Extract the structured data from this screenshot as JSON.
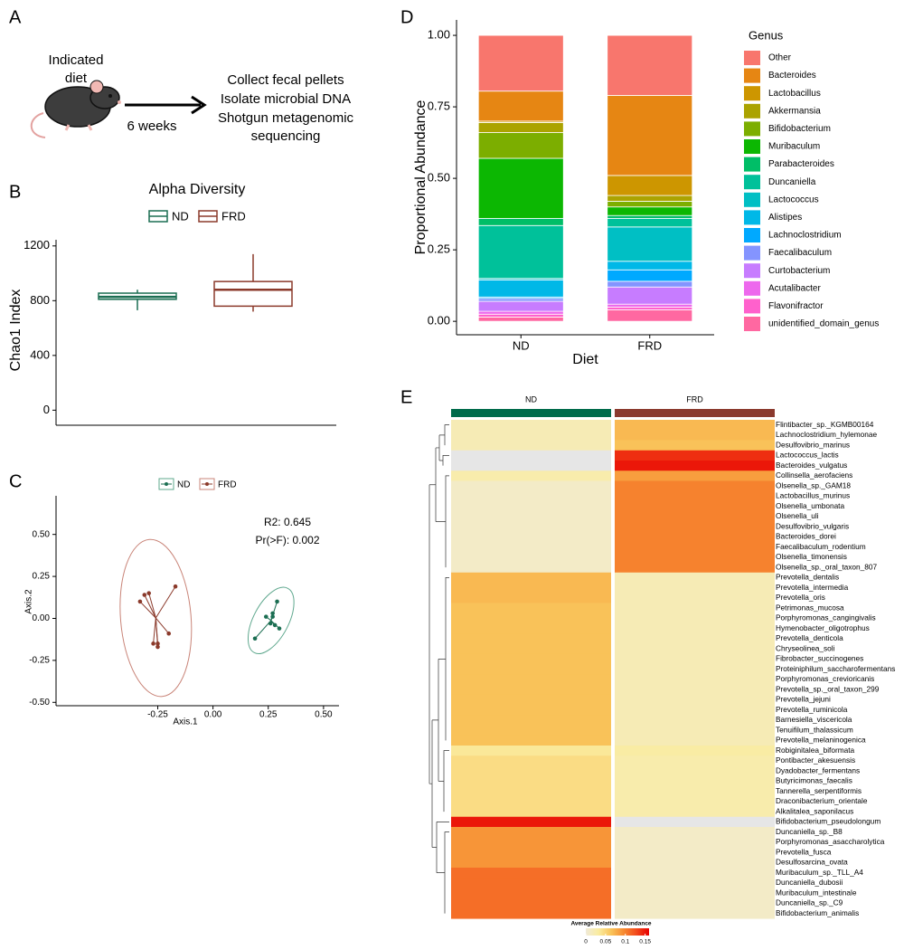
{
  "diagram": {
    "panel_label": "A",
    "diet_lines": [
      "Indicated",
      "diet"
    ],
    "duration": "6 weeks",
    "step_lines": [
      "Collect fecal pellets",
      "Isolate microbial DNA",
      "Shotgun metagenomic",
      "sequencing"
    ]
  },
  "chart_data": [
    {
      "type": "box",
      "panel_label": "B",
      "title": "Alpha Diversity",
      "ylabel": "Chao1 Index",
      "ylim": [
        -110,
        1245
      ],
      "yticks": [
        0,
        400,
        800,
        1200
      ],
      "series": [
        {
          "name": "ND",
          "color": "#1b6e52",
          "min": 730,
          "q1": 810,
          "median": 828,
          "q3": 855,
          "max": 880
        },
        {
          "name": "FRD",
          "color": "#8b3a2b",
          "min": 720,
          "q1": 760,
          "median": 880,
          "q3": 940,
          "max": 1140
        }
      ]
    },
    {
      "type": "scatter",
      "panel_label": "C",
      "xlabel": "Axis.1",
      "ylabel": "Axis.2",
      "annotations": [
        "R2: 0.645",
        "Pr(>F): 0.002"
      ],
      "xlim": [
        -0.71,
        0.57
      ],
      "ylim": [
        -0.52,
        0.73
      ],
      "xticks": [
        -0.25,
        {
          "value": 0,
          "label": "0.00"
        },
        0.25,
        {
          "value": 0.5,
          "label": "0.50"
        }
      ],
      "yticks": [
        {
          "value": -0.5,
          "label": "-0.50"
        },
        -0.25,
        {
          "value": 0,
          "label": "0.00"
        },
        0.25,
        {
          "value": 0.5,
          "label": "0.50"
        }
      ],
      "series": [
        {
          "name": "ND",
          "color": "#1b6e52",
          "ellipse_color": "#5fa88e",
          "x": [
            0.29,
            0.27,
            0.26,
            0.24,
            0.28,
            0.27,
            0.19,
            0.3
          ],
          "y": [
            0.1,
            0.03,
            -0.03,
            0.01,
            -0.04,
            0.01,
            -0.12,
            -0.06
          ]
        },
        {
          "name": "FRD",
          "color": "#8b3a2b",
          "ellipse_color": "#c98478",
          "x": [
            -0.17,
            -0.29,
            -0.33,
            -0.31,
            -0.2,
            -0.25,
            -0.27,
            -0.25
          ],
          "y": [
            0.19,
            0.15,
            0.1,
            0.14,
            -0.09,
            -0.15,
            -0.15,
            -0.17
          ]
        }
      ]
    },
    {
      "type": "bar",
      "stacked": true,
      "panel_label": "D",
      "xlabel": "Diet",
      "ylabel": "Proportional Abundance",
      "legend_title": "Genus",
      "categories": [
        "ND",
        "FRD"
      ],
      "ylim": [
        -0.047,
        1.054
      ],
      "yticks": [
        {
          "value": 0,
          "label": "0.00"
        },
        {
          "value": 0.25,
          "label": "0.25"
        },
        {
          "value": 0.5,
          "label": "0.50"
        },
        {
          "value": 0.75,
          "label": "0.75"
        },
        {
          "value": 1,
          "label": "1.00"
        }
      ],
      "series": [
        {
          "name": "Other",
          "color": "#F8766D",
          "values": [
            0.195,
            0.21
          ]
        },
        {
          "name": "Bacteroides",
          "color": "#E68613",
          "values": [
            0.105,
            0.28
          ]
        },
        {
          "name": "Lactobacillus",
          "color": "#CD9600",
          "values": [
            0.005,
            0.07
          ]
        },
        {
          "name": "Akkermansia",
          "color": "#ABA300",
          "values": [
            0.035,
            0.02
          ]
        },
        {
          "name": "Bifidobacterium",
          "color": "#7CAE00",
          "values": [
            0.09,
            0.02
          ]
        },
        {
          "name": "Muribaculum",
          "color": "#0CB702",
          "values": [
            0.21,
            0.03
          ]
        },
        {
          "name": "Parabacteroides",
          "color": "#00BE67",
          "values": [
            0.025,
            0.01
          ]
        },
        {
          "name": "Duncaniella",
          "color": "#00C19A",
          "values": [
            0.185,
            0.03
          ]
        },
        {
          "name": "Lactococcus",
          "color": "#00BFC4",
          "values": [
            0.005,
            0.12
          ]
        },
        {
          "name": "Alistipes",
          "color": "#00B8E7",
          "values": [
            0.06,
            0.03
          ]
        },
        {
          "name": "Lachnoclostridium",
          "color": "#00A9FF",
          "values": [
            0.005,
            0.04
          ]
        },
        {
          "name": "Faecalibaculum",
          "color": "#8494FF",
          "values": [
            0.01,
            0.02
          ]
        },
        {
          "name": "Curtobacterium",
          "color": "#C77CFF",
          "values": [
            0.035,
            0.06
          ]
        },
        {
          "name": "Acutalibacter",
          "color": "#ED68ED",
          "values": [
            0.01,
            0.01
          ]
        },
        {
          "name": "Flavonifractor",
          "color": "#FF61CC",
          "values": [
            0.01,
            0.01
          ]
        },
        {
          "name": "unidentified_domain_genus",
          "color": "#FF68A1",
          "values": [
            0.015,
            0.04
          ]
        }
      ]
    },
    {
      "type": "heatmap",
      "panel_label": "E",
      "columns": [
        "ND",
        "FRD"
      ],
      "column_colors": [
        "#006b4a",
        "#8b3a2e"
      ],
      "colorbar_title": "Average Relative Abundance",
      "clim": [
        0,
        0.16
      ],
      "colorbar_ticks": [
        0,
        0.05,
        0.1,
        0.15
      ],
      "colors": [
        "#f0ead8",
        "#faeca0",
        "#f9c45a",
        "#f78a30",
        "#f24a1c",
        "#e80000"
      ],
      "na_color": "#e6e6e6",
      "rows": [
        "Flintibacter_sp._KGMB00164",
        "Lachnoclostridium_hylemonae",
        "Desulfovibrio_marinus",
        "Lactococcus_lactis",
        "Bacteroides_vulgatus",
        "Collinsella_aerofaciens",
        "Olsenella_sp._GAM18",
        "Lactobacillus_murinus",
        "Olsenella_umbonata",
        "Olsenella_uli",
        "Desulfovibrio_vulgaris",
        "Bacteroides_dorei",
        "Faecalibaculum_rodentium",
        "Olsenella_timonensis",
        "Olsenella_sp._oral_taxon_807",
        "Prevotella_dentalis",
        "Prevotella_intermedia",
        "Prevotella_oris",
        "Petrimonas_mucosa",
        "Porphyromonas_cangingivalis",
        "Hymenobacter_oligotrophus",
        "Prevotella_denticola",
        "Chryseolinea_soli",
        "Fibrobacter_succinogenes",
        "Proteiniphilum_saccharofermentans",
        "Porphyromonas_crevioricanis",
        "Prevotella_sp._oral_taxon_299",
        "Prevotella_jejuni",
        "Prevotella_ruminicola",
        "Barnesiella_viscericola",
        "Tenuifilum_thalassicum",
        "Prevotella_melaninogenica",
        "Robiginitalea_biformata",
        "Pontibacter_akesuensis",
        "Dyadobacter_fermentans",
        "Butyricimonas_faecalis",
        "Tannerella_serpentiformis",
        "Draconibacterium_orientale",
        "Alkalitalea_saponilacus",
        "Bifidobacterium_pseudolongum",
        "Duncaniella_sp._B8",
        "Porphyromonas_asaccharolytica",
        "Prevotella_fusca",
        "Desulfosarcina_ovata",
        "Muribaculum_sp._TLL_A4",
        "Duncaniella_dubosii",
        "Muribaculum_intestinale",
        "Duncaniella_sp._C9",
        "Bifidobacterium_animalis"
      ],
      "values": [
        [
          0.02,
          0.07
        ],
        [
          0.02,
          0.07
        ],
        [
          0.02,
          0.065
        ],
        [
          null,
          0.14
        ],
        [
          null,
          0.15
        ],
        [
          0.025,
          0.085
        ],
        [
          0.01,
          0.1
        ],
        [
          0.01,
          0.1
        ],
        [
          0.01,
          0.1
        ],
        [
          0.01,
          0.1
        ],
        [
          0.01,
          0.1
        ],
        [
          0.01,
          0.1
        ],
        [
          0.01,
          0.1
        ],
        [
          0.01,
          0.1
        ],
        [
          0.01,
          0.1
        ],
        [
          0.07,
          0.02
        ],
        [
          0.07,
          0.02
        ],
        [
          0.07,
          0.02
        ],
        [
          0.065,
          0.02
        ],
        [
          0.065,
          0.02
        ],
        [
          0.065,
          0.02
        ],
        [
          0.065,
          0.02
        ],
        [
          0.065,
          0.02
        ],
        [
          0.065,
          0.02
        ],
        [
          0.065,
          0.02
        ],
        [
          0.065,
          0.02
        ],
        [
          0.065,
          0.02
        ],
        [
          0.065,
          0.02
        ],
        [
          0.065,
          0.02
        ],
        [
          0.065,
          0.02
        ],
        [
          0.065,
          0.02
        ],
        [
          0.065,
          0.02
        ],
        [
          0.035,
          0.03
        ],
        [
          0.045,
          0.025
        ],
        [
          0.045,
          0.025
        ],
        [
          0.045,
          0.025
        ],
        [
          0.045,
          0.025
        ],
        [
          0.045,
          0.025
        ],
        [
          0.045,
          0.025
        ],
        [
          0.15,
          null
        ],
        [
          0.09,
          0.01
        ],
        [
          0.09,
          0.01
        ],
        [
          0.09,
          0.01
        ],
        [
          0.09,
          0.01
        ],
        [
          0.11,
          0.01
        ],
        [
          0.11,
          0.01
        ],
        [
          0.11,
          0.01
        ],
        [
          0.11,
          0.01
        ],
        [
          0.11,
          0.01
        ]
      ]
    }
  ]
}
